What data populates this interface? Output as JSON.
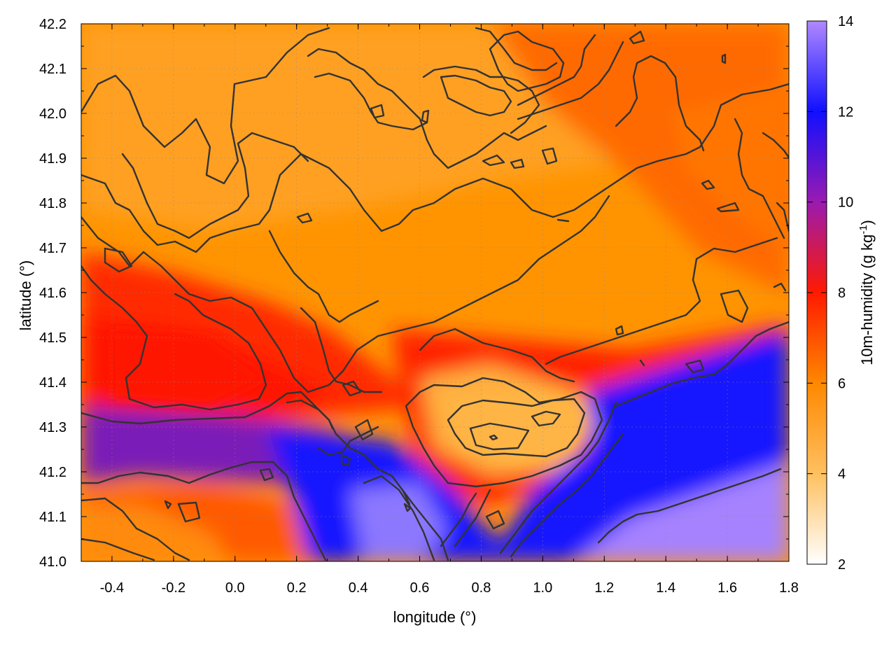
{
  "chart_data": {
    "type": "heatmap",
    "title": "",
    "xlabel": "longitude (°)",
    "ylabel": "latitude (°)",
    "colorbar_label": "10m-humidity (g kg",
    "colorbar_label_sup": "-1",
    "colorbar_label_end": ")",
    "xlim": [
      -0.5,
      1.8
    ],
    "ylim": [
      41.0,
      42.2
    ],
    "colorbar_range": [
      2,
      14
    ],
    "x_ticks": [
      "-0.4",
      "-0.2",
      "0.0",
      "0.2",
      "0.4",
      "0.6",
      "0.8",
      "1.0",
      "1.2",
      "1.4",
      "1.6",
      "1.8"
    ],
    "x_tick_values": [
      -0.4,
      -0.2,
      0.0,
      0.2,
      0.4,
      0.6,
      0.8,
      1.0,
      1.2,
      1.4,
      1.6,
      1.8
    ],
    "y_ticks": [
      "41.0",
      "41.1",
      "41.2",
      "41.3",
      "41.4",
      "41.5",
      "41.6",
      "41.7",
      "41.8",
      "41.9",
      "42.0",
      "42.1",
      "42.2"
    ],
    "y_tick_values": [
      41.0,
      41.1,
      41.2,
      41.3,
      41.4,
      41.5,
      41.6,
      41.7,
      41.8,
      41.9,
      42.0,
      42.1,
      42.2
    ],
    "colorbar_ticks": [
      "2",
      "4",
      "6",
      "8",
      "10",
      "12",
      "14"
    ],
    "colorbar_tick_values": [
      2,
      4,
      6,
      8,
      10,
      12,
      14
    ],
    "grid": true,
    "colormap": [
      {
        "value": 2,
        "color": "#ffffff"
      },
      {
        "value": 4,
        "color": "#ffc060"
      },
      {
        "value": 6,
        "color": "#ff8800"
      },
      {
        "value": 8,
        "color": "#ff1a00"
      },
      {
        "value": 10,
        "color": "#9a1ab0"
      },
      {
        "value": 12,
        "color": "#1010ff"
      },
      {
        "value": 14,
        "color": "#b088ff"
      }
    ],
    "overlay": "terrain elevation contours"
  }
}
